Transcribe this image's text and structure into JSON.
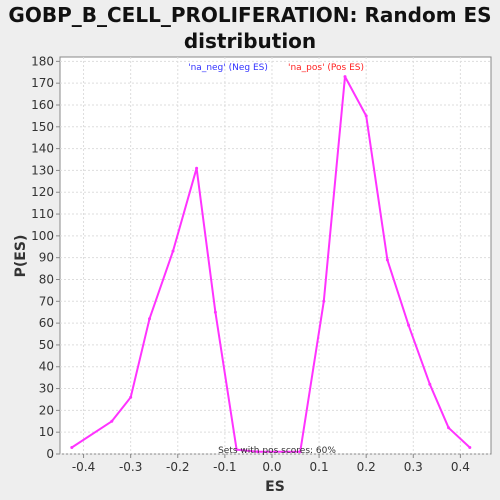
{
  "chart_data": {
    "type": "line",
    "title": "GOBP_B_CELL_PROLIFERATION: Random ES distribution",
    "xlabel": "ES",
    "ylabel": "P(ES)",
    "xlim": [
      -0.45,
      0.465
    ],
    "ylim": [
      0,
      182
    ],
    "x_ticks": [
      -0.4,
      -0.3,
      -0.2,
      -0.1,
      0.0,
      0.1,
      0.2,
      0.3,
      0.4
    ],
    "x_tick_labels": [
      "-0.4",
      "-0.3",
      "-0.2",
      "-0.1",
      "0.0",
      "0.1",
      "0.2",
      "0.3",
      "0.4"
    ],
    "y_ticks": [
      0,
      10,
      20,
      30,
      40,
      50,
      60,
      70,
      80,
      90,
      100,
      110,
      120,
      130,
      140,
      150,
      160,
      170,
      180
    ],
    "grid": true,
    "legend": {
      "placement": "top-center",
      "entries": [
        {
          "label": "'na_neg' (Neg ES)",
          "color": "#3333ff"
        },
        {
          "label": "'na_pos' (Pos ES)",
          "color": "#ff2222"
        }
      ]
    },
    "annotation": "Sets with pos scores: 60%",
    "line_color": "#ff33ff",
    "series": [
      {
        "points": [
          [
            -0.425,
            3
          ],
          [
            -0.34,
            15
          ],
          [
            -0.3,
            26
          ],
          [
            -0.26,
            62
          ],
          [
            -0.21,
            93
          ],
          [
            -0.16,
            131
          ],
          [
            -0.12,
            65
          ],
          [
            -0.075,
            2
          ],
          [
            -0.03,
            1
          ],
          [
            0.06,
            1
          ],
          [
            0.11,
            70
          ],
          [
            0.155,
            173
          ],
          [
            0.2,
            155
          ],
          [
            0.245,
            89
          ],
          [
            0.29,
            59
          ],
          [
            0.335,
            32
          ],
          [
            0.375,
            12
          ],
          [
            0.42,
            3
          ]
        ]
      }
    ]
  }
}
